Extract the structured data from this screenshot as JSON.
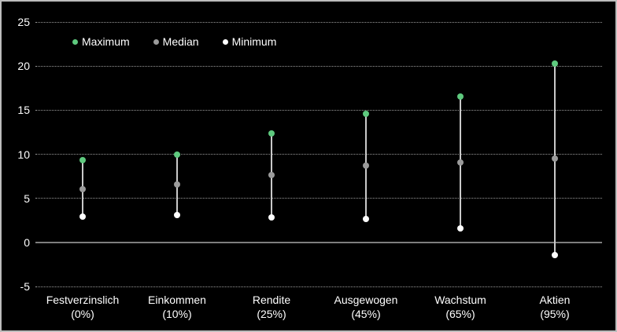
{
  "chart_data": {
    "type": "scatter",
    "subtype": "range-lollipop",
    "title": "",
    "categories": [
      "Festverzinslich",
      "Einkommen",
      "Rendite",
      "Ausgewogen",
      "Wachstum",
      "Aktien"
    ],
    "category_sublabels": [
      "(0%)",
      "(10%)",
      "(25%)",
      "(45%)",
      "(65%)",
      "(95%)"
    ],
    "series": [
      {
        "name": "Maximum",
        "color": "#5ec97e",
        "values": [
          9.3,
          10.0,
          12.4,
          14.6,
          16.5,
          20.3
        ]
      },
      {
        "name": "Median",
        "color": "#9b9b9b",
        "values": [
          6.0,
          6.6,
          7.6,
          8.7,
          9.1,
          9.5
        ]
      },
      {
        "name": "Minimum",
        "color": "#ffffff",
        "values": [
          2.9,
          3.1,
          2.8,
          2.7,
          1.6,
          -1.4
        ]
      }
    ],
    "yticks": [
      -5,
      0,
      5,
      10,
      15,
      20,
      25
    ],
    "ylim": [
      -5,
      25
    ],
    "xlabel": "",
    "ylabel": "",
    "grid": "horizontal-dotted",
    "zero_line": true,
    "legend_position": "top-left",
    "colors": {
      "background": "#000000",
      "frame_border": "#bdbdbd",
      "gridline": "#9a9a9a",
      "zero_line": "#7e7e7e",
      "connector": "#c9c9c9",
      "text": "#ffffff"
    }
  }
}
